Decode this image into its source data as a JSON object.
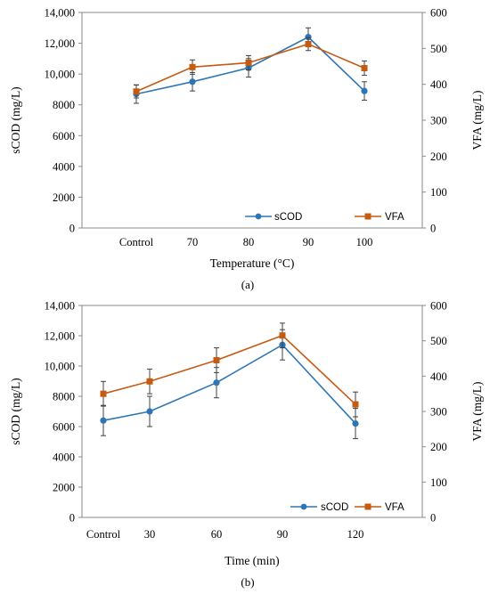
{
  "figure": {
    "captions": [
      "(a)",
      "(b)"
    ]
  },
  "chart_data": [
    {
      "type": "line",
      "panel": "(a)",
      "categories": [
        "Control",
        "70",
        "80",
        "90",
        "100"
      ],
      "xlabel": "Temperature (°C)",
      "ylabel": "sCOD (mg/L)",
      "y2label": "VFA (mg/L)",
      "ylim": [
        0,
        14000
      ],
      "y2lim": [
        0,
        600
      ],
      "yticks": [
        "0",
        "2000",
        "4000",
        "6000",
        "8000",
        "10,000",
        "12,000",
        "14,000"
      ],
      "y2ticks": [
        "0",
        "100",
        "200",
        "300",
        "400",
        "500",
        "600"
      ],
      "grid": false,
      "legend_position": "bottom-right",
      "series": [
        {
          "name": "sCOD",
          "axis": "left",
          "color": "#2e75b6",
          "marker": "circle",
          "values": [
            8700,
            9500,
            10400,
            12400,
            8900
          ],
          "errors": [
            600,
            600,
            600,
            600,
            600
          ]
        },
        {
          "name": "VFA",
          "axis": "right",
          "color": "#c55a11",
          "marker": "square",
          "values": [
            380,
            448,
            460,
            512,
            445
          ],
          "errors": [
            18,
            20,
            20,
            18,
            20
          ]
        }
      ]
    },
    {
      "type": "line",
      "panel": "(b)",
      "categories": [
        "Control",
        "30",
        "60",
        "90",
        "120"
      ],
      "xlabel": "Time (min)",
      "ylabel": "sCOD (mg/L)",
      "y2label": "VFA (mg/L)",
      "ylim": [
        0,
        14000
      ],
      "y2lim": [
        0,
        600
      ],
      "yticks": [
        "0",
        "2000",
        "4000",
        "6000",
        "8000",
        "10,000",
        "12,000",
        "14,000"
      ],
      "y2ticks": [
        "0",
        "100",
        "200",
        "300",
        "400",
        "500",
        "600"
      ],
      "grid": false,
      "legend_position": "bottom-right",
      "series": [
        {
          "name": "sCOD",
          "axis": "left",
          "color": "#2e75b6",
          "marker": "circle",
          "values": [
            6400,
            7000,
            8900,
            11400,
            6200
          ],
          "errors": [
            1000,
            1000,
            1000,
            1000,
            1000
          ]
        },
        {
          "name": "VFA",
          "axis": "right",
          "color": "#c55a11",
          "marker": "square",
          "values": [
            350,
            385,
            445,
            515,
            320
          ],
          "errors": [
            35,
            35,
            35,
            35,
            35
          ]
        }
      ]
    }
  ]
}
